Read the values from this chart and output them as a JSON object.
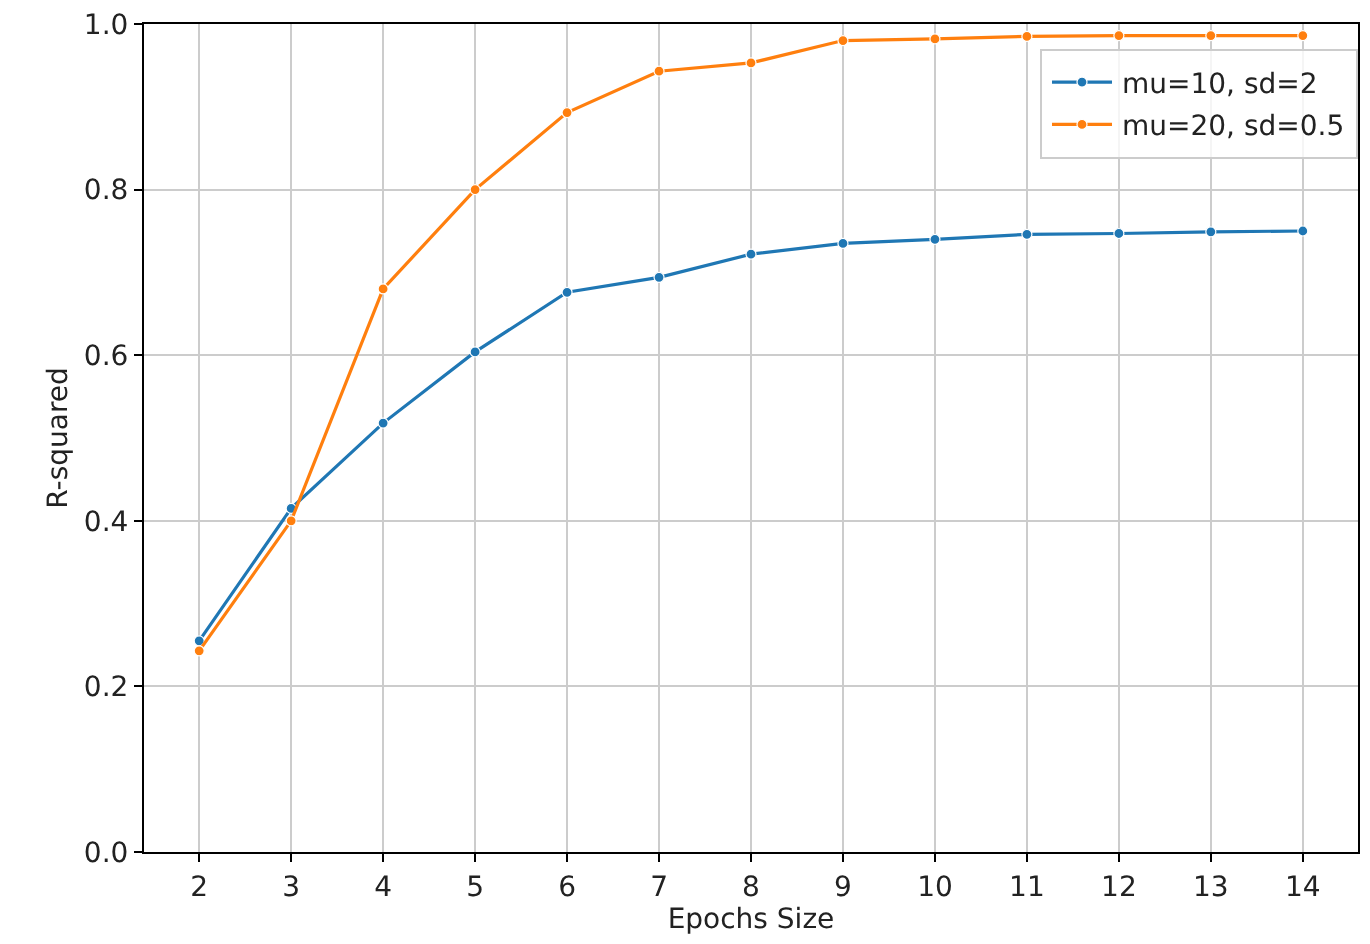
{
  "chart_data": {
    "type": "line",
    "xlabel": "Epochs Size",
    "ylabel": "R-squared",
    "x": [
      2,
      3,
      4,
      5,
      6,
      7,
      8,
      9,
      10,
      11,
      12,
      13,
      14
    ],
    "series": [
      {
        "name": "mu=10, sd=2",
        "color": "#1f77b4",
        "values": [
          0.255,
          0.415,
          0.518,
          0.604,
          0.676,
          0.694,
          0.722,
          0.735,
          0.74,
          0.746,
          0.747,
          0.749,
          0.75
        ]
      },
      {
        "name": "mu=20, sd=0.5",
        "color": "#ff7f0e",
        "values": [
          0.243,
          0.4,
          0.68,
          0.8,
          0.893,
          0.943,
          0.953,
          0.98,
          0.982,
          0.985,
          0.986,
          0.986,
          0.986
        ]
      }
    ],
    "xlim": [
      1.4,
      14.6
    ],
    "xticks": [
      2,
      3,
      4,
      5,
      6,
      7,
      8,
      9,
      10,
      11,
      12,
      13,
      14
    ],
    "ylim": [
      0,
      1
    ],
    "yticks": [
      {
        "value": 0,
        "label": "0.0"
      },
      {
        "value": 0.2,
        "label": "0.2"
      },
      {
        "value": 0.4,
        "label": "0.4"
      },
      {
        "value": 0.6,
        "label": "0.6"
      },
      {
        "value": 0.8,
        "label": "0.8"
      },
      {
        "value": 1,
        "label": "1.0"
      }
    ],
    "grid": true,
    "legend": "top right",
    "marker": "circle",
    "line_style": "solid"
  }
}
